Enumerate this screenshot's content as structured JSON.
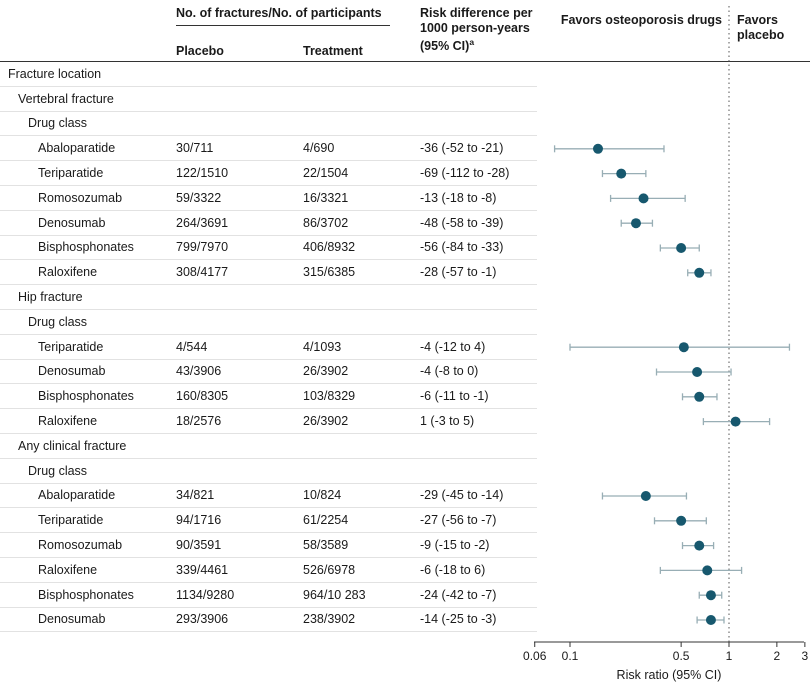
{
  "colors": {
    "marker": "#17586e",
    "ci": "#98aeb5",
    "ref_line": "#555555",
    "axis": "#333333",
    "row_line": "#e2e2e2",
    "text": "#1a1a1a"
  },
  "header": {
    "col_group": "No. of fractures/No. of participants",
    "col_placebo": "Placebo",
    "col_treatment": "Treatment",
    "col_risk_diff": "Risk difference per 1000 person-years (95% CI)",
    "col_risk_diff_sup": "a",
    "favors_left": "Favors osteoporosis drugs",
    "favors_right": "Favors placebo"
  },
  "axis": {
    "label": "Risk ratio (95% CI)",
    "xscale": "log",
    "ticks": [
      "0.06",
      "0.1",
      "0.5",
      "1",
      "2",
      "3"
    ],
    "ref_line": 1,
    "xlim": [
      0.055,
      3.1
    ]
  },
  "chart_data": {
    "type": "scatter",
    "variant": "forest",
    "xlabel": "Risk ratio (95% CI)",
    "columns": [
      "Fracture location",
      "Placebo",
      "Treatment",
      "Risk difference per 1000 person-years (95% CI)"
    ],
    "rows": [
      {
        "kind": "section",
        "indent": 0,
        "label": "Fracture location"
      },
      {
        "kind": "section",
        "indent": 1,
        "label": "Vertebral fracture"
      },
      {
        "kind": "section",
        "indent": 2,
        "label": "Drug class"
      },
      {
        "kind": "data",
        "indent": 3,
        "label": "Abaloparatide",
        "placebo": "30/711",
        "treatment": "4/690",
        "risk_diff": "-36 (-52 to -21)",
        "rr": 0.15,
        "ci_lo": 0.08,
        "ci_hi": 0.39
      },
      {
        "kind": "data",
        "indent": 3,
        "label": "Teriparatide",
        "placebo": "122/1510",
        "treatment": "22/1504",
        "risk_diff": "-69 (-112 to -28)",
        "rr": 0.21,
        "ci_lo": 0.16,
        "ci_hi": 0.3
      },
      {
        "kind": "data",
        "indent": 3,
        "label": "Romosozumab",
        "placebo": "59/3322",
        "treatment": "16/3321",
        "risk_diff": "-13 (-18 to -8)",
        "rr": 0.29,
        "ci_lo": 0.18,
        "ci_hi": 0.53
      },
      {
        "kind": "data",
        "indent": 3,
        "label": "Denosumab",
        "placebo": "264/3691",
        "treatment": "86/3702",
        "risk_diff": "-48 (-58 to -39)",
        "rr": 0.26,
        "ci_lo": 0.21,
        "ci_hi": 0.33
      },
      {
        "kind": "data",
        "indent": 3,
        "label": "Bisphosphonates",
        "placebo": "799/7970",
        "treatment": "406/8932",
        "risk_diff": "-56 (-84 to -33)",
        "rr": 0.5,
        "ci_lo": 0.37,
        "ci_hi": 0.65
      },
      {
        "kind": "data",
        "indent": 3,
        "label": "Raloxifene",
        "placebo": "308/4177",
        "treatment": "315/6385",
        "risk_diff": "-28 (-57 to -1)",
        "rr": 0.65,
        "ci_lo": 0.55,
        "ci_hi": 0.77
      },
      {
        "kind": "section",
        "indent": 1,
        "label": "Hip fracture"
      },
      {
        "kind": "section",
        "indent": 2,
        "label": "Drug class"
      },
      {
        "kind": "data",
        "indent": 3,
        "label": "Teriparatide",
        "placebo": "4/544",
        "treatment": "4/1093",
        "risk_diff": "-4 (-12 to 4)",
        "rr": 0.52,
        "ci_lo": 0.1,
        "ci_hi": 2.4
      },
      {
        "kind": "data",
        "indent": 3,
        "label": "Denosumab",
        "placebo": "43/3906",
        "treatment": "26/3902",
        "risk_diff": "-4 (-8 to 0)",
        "rr": 0.63,
        "ci_lo": 0.35,
        "ci_hi": 1.03
      },
      {
        "kind": "data",
        "indent": 3,
        "label": "Bisphosphonates",
        "placebo": "160/8305",
        "treatment": "103/8329",
        "risk_diff": "-6 (-11 to -1)",
        "rr": 0.65,
        "ci_lo": 0.51,
        "ci_hi": 0.84
      },
      {
        "kind": "data",
        "indent": 3,
        "label": "Raloxifene",
        "placebo": "18/2576",
        "treatment": "26/3902",
        "risk_diff": "1 (-3 to 5)",
        "rr": 1.1,
        "ci_lo": 0.69,
        "ci_hi": 1.8
      },
      {
        "kind": "section",
        "indent": 1,
        "label": "Any clinical fracture"
      },
      {
        "kind": "section",
        "indent": 2,
        "label": "Drug class"
      },
      {
        "kind": "data",
        "indent": 3,
        "label": "Abaloparatide",
        "placebo": "34/821",
        "treatment": "10/824",
        "risk_diff": "-29 (-45 to -14)",
        "rr": 0.3,
        "ci_lo": 0.16,
        "ci_hi": 0.54
      },
      {
        "kind": "data",
        "indent": 3,
        "label": "Teriparatide",
        "placebo": "94/1716",
        "treatment": "61/2254",
        "risk_diff": "-27 (-56 to -7)",
        "rr": 0.5,
        "ci_lo": 0.34,
        "ci_hi": 0.72
      },
      {
        "kind": "data",
        "indent": 3,
        "label": "Romosozumab",
        "placebo": "90/3591",
        "treatment": "58/3589",
        "risk_diff": "-9 (-15 to -2)",
        "rr": 0.65,
        "ci_lo": 0.51,
        "ci_hi": 0.8
      },
      {
        "kind": "data",
        "indent": 3,
        "label": "Raloxifene",
        "placebo": "339/4461",
        "treatment": "526/6978",
        "risk_diff": "-6 (-18 to 6)",
        "rr": 0.73,
        "ci_lo": 0.37,
        "ci_hi": 1.2
      },
      {
        "kind": "data",
        "indent": 3,
        "label": "Bisphosphonates",
        "placebo": "1134/9280",
        "treatment": "964/10 283",
        "risk_diff": "-24 (-42 to -7)",
        "rr": 0.77,
        "ci_lo": 0.65,
        "ci_hi": 0.9
      },
      {
        "kind": "data",
        "indent": 3,
        "label": "Denosumab",
        "placebo": "293/3906",
        "treatment": "238/3902",
        "risk_diff": "-14 (-25 to -3)",
        "rr": 0.77,
        "ci_lo": 0.63,
        "ci_hi": 0.93
      }
    ]
  }
}
